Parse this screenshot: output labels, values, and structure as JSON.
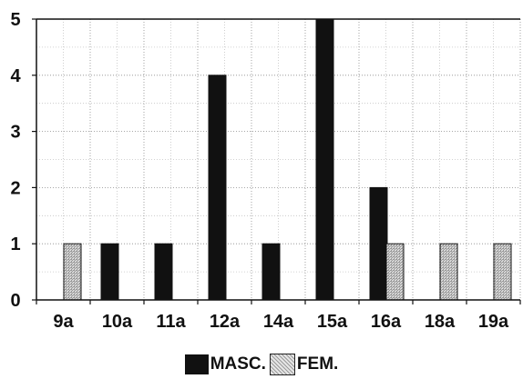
{
  "chart_data": {
    "type": "bar",
    "title": "",
    "xlabel": "",
    "ylabel": "",
    "categories": [
      "9a",
      "10a",
      "11a",
      "12a",
      "14a",
      "15a",
      "16a",
      "18a",
      "19a"
    ],
    "series": [
      {
        "name": "MASC.",
        "values": [
          0,
          1,
          1,
          4,
          1,
          5,
          2,
          0,
          0
        ],
        "color": "#111111"
      },
      {
        "name": "FEM.",
        "values": [
          1,
          0,
          0,
          0,
          0,
          0,
          1,
          1,
          1
        ],
        "color": "#cfcfcf"
      }
    ],
    "ylim": [
      0,
      5
    ],
    "yticks": [
      0,
      1,
      2,
      3,
      4,
      5
    ],
    "grid": true,
    "legend_position": "bottom-center"
  },
  "legend": {
    "masc_label": "MASC.",
    "fem_label": "FEM."
  }
}
